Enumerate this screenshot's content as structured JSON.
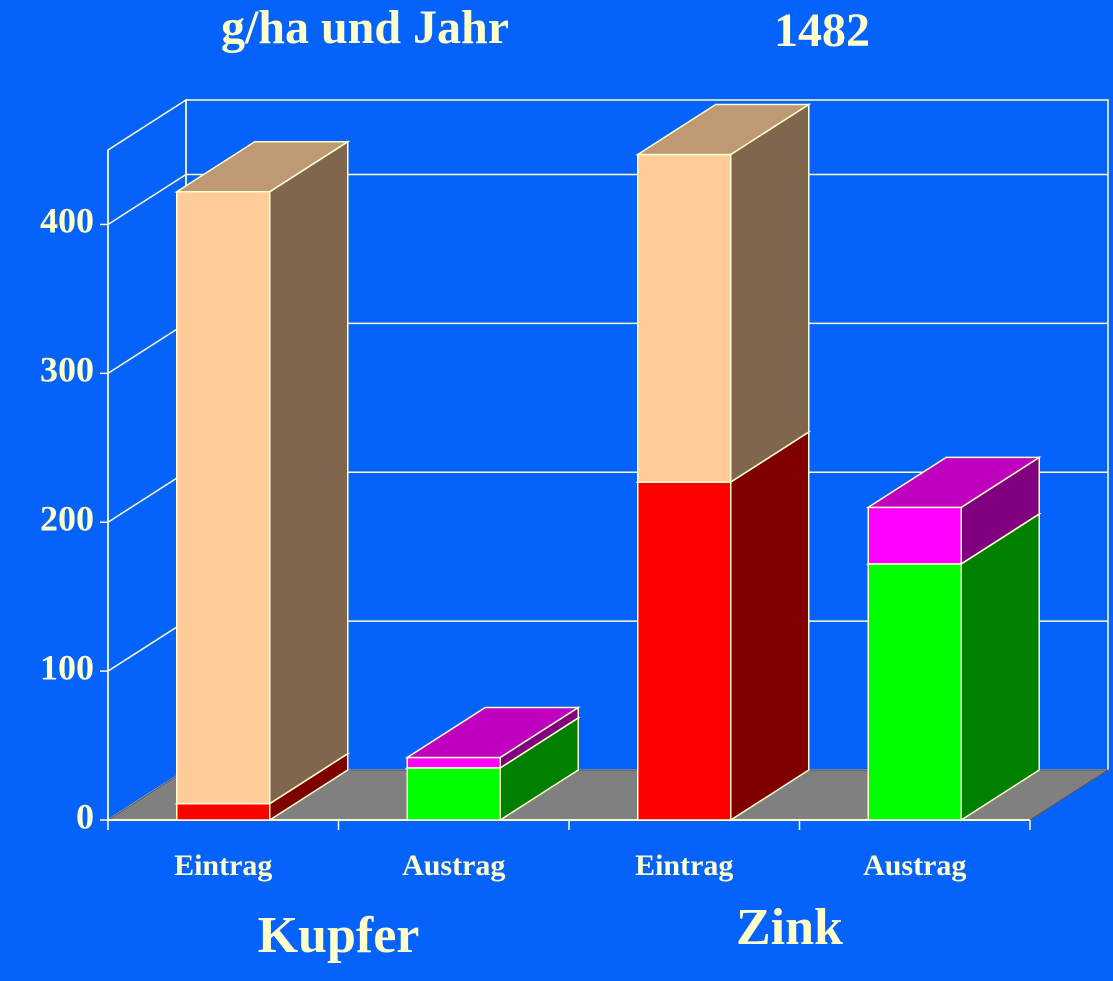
{
  "chart_data": {
    "type": "bar3d_stacked",
    "title": "g/ha und Jahr",
    "subtitle": "1482",
    "categories": [
      "Eintrag",
      "Austrag",
      "Eintrag",
      "Austrag"
    ],
    "groups": [
      {
        "label": "Kupfer",
        "span": [
          0,
          1
        ]
      },
      {
        "label": "Zink",
        "span": [
          2,
          3
        ]
      }
    ],
    "series": [
      {
        "values": [
          11,
          35,
          227,
          172
        ],
        "colors": [
          "#ff0000",
          "#00ff00",
          "#ff0000",
          "#00ff00"
        ]
      },
      {
        "values": [
          411,
          7,
          220,
          38
        ],
        "colors": [
          "#ffcc99",
          "#ff00ff",
          "#ffcc99",
          "#ff00ff"
        ]
      }
    ],
    "ylim": [
      0,
      450
    ],
    "yticks": [
      0,
      100,
      200,
      300,
      400
    ],
    "grid": true
  }
}
